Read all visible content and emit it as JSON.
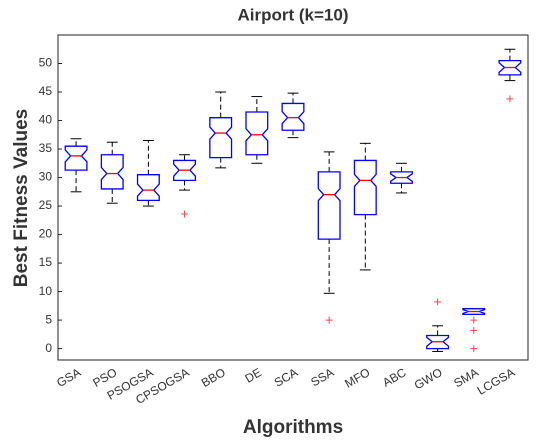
{
  "chart_data": {
    "type": "box",
    "title": "Airport  (k=10)",
    "x_label": "Algorithms",
    "y_label": "Best  Fitness  Values",
    "categories": [
      "GSA",
      "PSO",
      "PSOGSA",
      "CPSOGSA",
      "BBO",
      "DE",
      "SCA",
      "SSA",
      "MFO",
      "ABC",
      "GWO",
      "SMA",
      "LCGSA"
    ],
    "boxes": [
      {
        "low": 27.5,
        "q1": 31.3,
        "median": 33.8,
        "q3": 35.5,
        "high": 36.8,
        "outliers": []
      },
      {
        "low": 25.5,
        "q1": 28,
        "median": 30.7,
        "q3": 34,
        "high": 36.2,
        "outliers": []
      },
      {
        "low": 25,
        "q1": 26,
        "median": 27.8,
        "q3": 30.5,
        "high": 36.5,
        "outliers": []
      },
      {
        "low": 27.8,
        "q1": 29.5,
        "median": 31.3,
        "q3": 33,
        "high": 34,
        "outliers": [
          23.6
        ]
      },
      {
        "low": 31.7,
        "q1": 33.5,
        "median": 37.8,
        "q3": 40.5,
        "high": 45,
        "outliers": []
      },
      {
        "low": 32.5,
        "q1": 34,
        "median": 37.5,
        "q3": 41.5,
        "high": 44.2,
        "outliers": []
      },
      {
        "low": 37,
        "q1": 38.3,
        "median": 40.5,
        "q3": 43,
        "high": 44.8,
        "outliers": []
      },
      {
        "low": 9.7,
        "q1": 19.2,
        "median": 27,
        "q3": 31,
        "high": 34.5,
        "outliers": [
          5
        ]
      },
      {
        "low": 13.8,
        "q1": 23.5,
        "median": 29.5,
        "q3": 33,
        "high": 36,
        "outliers": []
      },
      {
        "low": 27.3,
        "q1": 29,
        "median": 30,
        "q3": 31,
        "high": 32.5,
        "outliers": []
      },
      {
        "low": -0.5,
        "q1": 0,
        "median": 1.2,
        "q3": 2.3,
        "high": 4,
        "outliers": [
          8.2
        ]
      },
      {
        "low": 6,
        "q1": 6,
        "median": 6.5,
        "q3": 7,
        "high": 7,
        "outliers": [
          0,
          3.2,
          5
        ]
      },
      {
        "low": 47,
        "q1": 48,
        "median": 49.3,
        "q3": 50.5,
        "high": 52.5,
        "outliers": [
          43.8
        ]
      }
    ],
    "box_color": "#0000ff",
    "median_color": "#ff0000",
    "whisker_color": "#000000",
    "outlier_color": "#ff4444",
    "ylim": [
      -2,
      55
    ],
    "yticks": [
      0,
      5,
      10,
      15,
      20,
      25,
      30,
      35,
      40,
      45,
      50
    ]
  }
}
